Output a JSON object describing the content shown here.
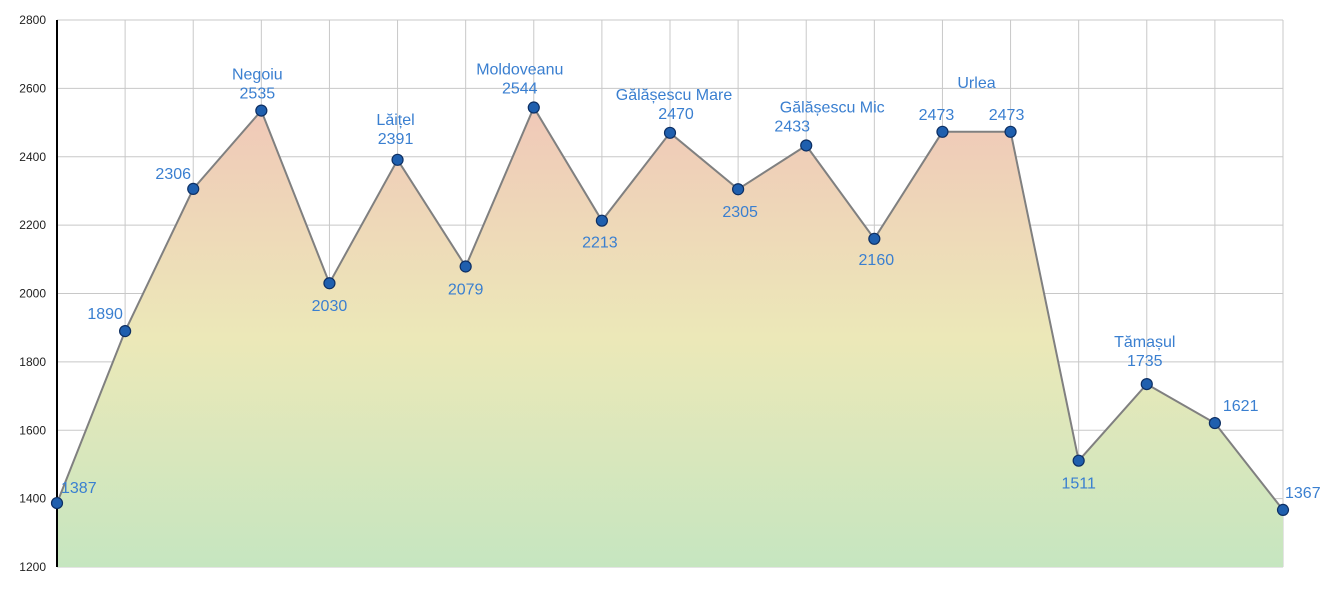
{
  "chart_data": {
    "type": "area",
    "title": "",
    "xlabel": "",
    "ylabel": "",
    "ylim": [
      1200,
      2800
    ],
    "yticks": [
      1200,
      1400,
      1600,
      1800,
      2000,
      2200,
      2400,
      2600,
      2800
    ],
    "grid": true,
    "points": [
      {
        "value": 1387,
        "name": ""
      },
      {
        "value": 1890,
        "name": ""
      },
      {
        "value": 2306,
        "name": ""
      },
      {
        "value": 2535,
        "name": "Negoiu"
      },
      {
        "value": 2030,
        "name": ""
      },
      {
        "value": 2391,
        "name": "Lăițel"
      },
      {
        "value": 2079,
        "name": ""
      },
      {
        "value": 2544,
        "name": "Moldoveanu"
      },
      {
        "value": 2213,
        "name": ""
      },
      {
        "value": 2470,
        "name": "Gălășescu Mare"
      },
      {
        "value": 2305,
        "name": ""
      },
      {
        "value": 2433,
        "name": "Gălășescu Mic"
      },
      {
        "value": 2160,
        "name": ""
      },
      {
        "value": 2473,
        "name": ""
      },
      {
        "value": 2473,
        "name": "Urlea"
      },
      {
        "value": 1511,
        "name": ""
      },
      {
        "value": 1735,
        "name": "Tămașul"
      },
      {
        "value": 1621,
        "name": ""
      },
      {
        "value": 1367,
        "name": ""
      }
    ]
  },
  "colors": {
    "line": "#808080",
    "marker_fill": "#1f5fae",
    "marker_stroke": "#0d2f63",
    "label": "#3a7fd0",
    "fill_top": "#f0c8b8",
    "fill_mid": "#ece8b8",
    "fill_bottom": "#c6e6c0"
  }
}
